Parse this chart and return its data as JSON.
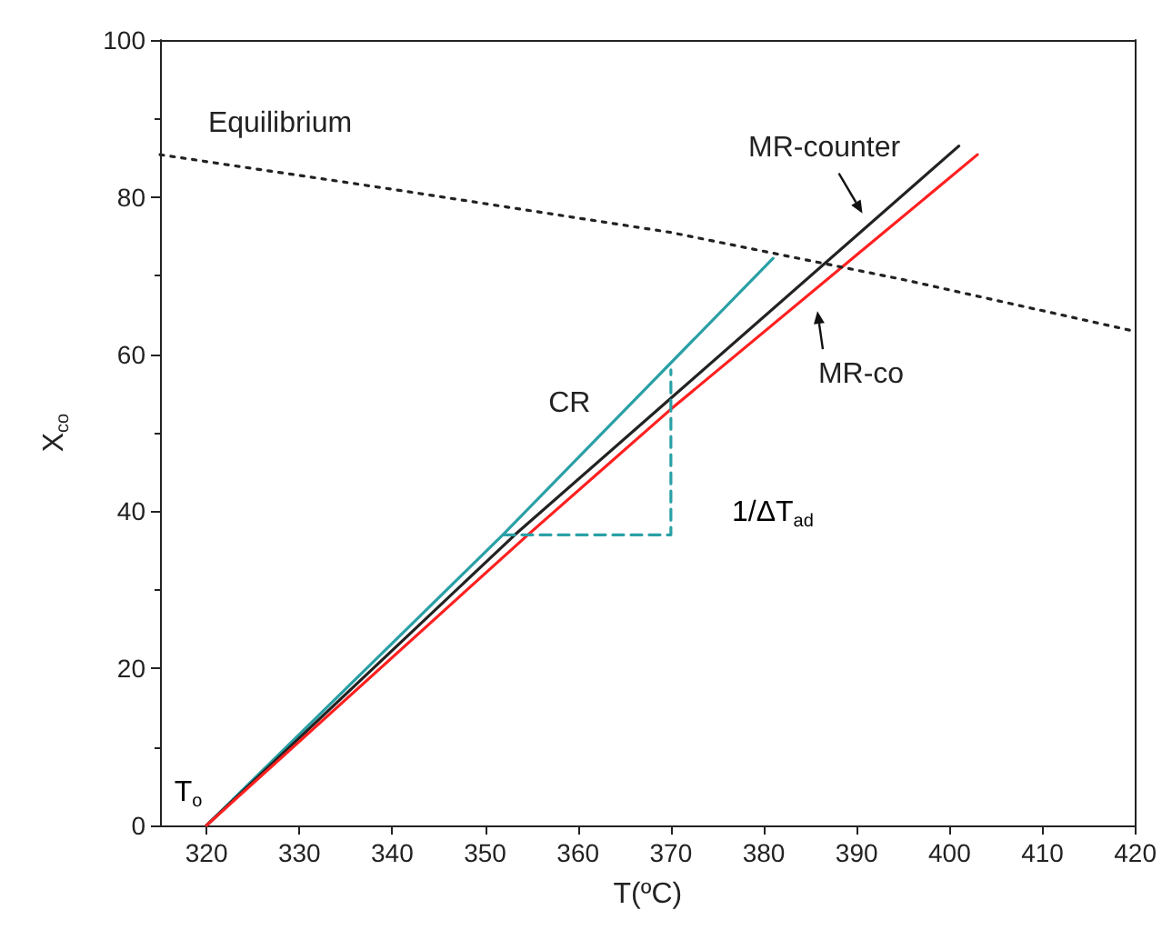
{
  "chart_data": {
    "type": "line",
    "xlabel": "T(ºC)",
    "ylabel": "X$_{co}$",
    "xlim": [
      315,
      420
    ],
    "xticks": [
      320,
      330,
      340,
      350,
      360,
      370,
      380,
      390,
      400,
      410,
      420
    ],
    "ylim": [
      0,
      100
    ],
    "yticks": [
      0,
      20,
      40,
      60,
      80,
      100
    ],
    "grid": false,
    "legend": false,
    "marker": "none",
    "series": [
      {
        "name": "CR",
        "color": "#2aa0a6",
        "x": [
          320,
          351.9,
          381
        ],
        "values": [
          0,
          37,
          72.2
        ],
        "line_style": "solid"
      },
      {
        "name": "MR-counter",
        "color": "#222222",
        "x": [
          320,
          353.2,
          370,
          401
        ],
        "values": [
          0,
          37,
          54.4,
          86.5
        ],
        "line_style": "solid"
      },
      {
        "name": "MR-co",
        "color": "#ff2020",
        "x": [
          320,
          354.6,
          370,
          403
        ],
        "values": [
          0,
          37,
          53,
          85.4
        ],
        "line_style": "solid"
      },
      {
        "name": "Equilibrium",
        "color": "#222222",
        "x": [
          315,
          340,
          370,
          395,
          420
        ],
        "values": [
          85.4,
          81,
          75.5,
          69.5,
          62.9
        ],
        "line_style": "dotted"
      },
      {
        "color": "#2aa0a6",
        "x": [
          352,
          370,
          370
        ],
        "values": [
          37,
          37,
          58
        ],
        "line_style": "dashed"
      }
    ],
    "annotations": [
      "1/ΔT$_{ad}$",
      "T$_{o}$"
    ]
  }
}
